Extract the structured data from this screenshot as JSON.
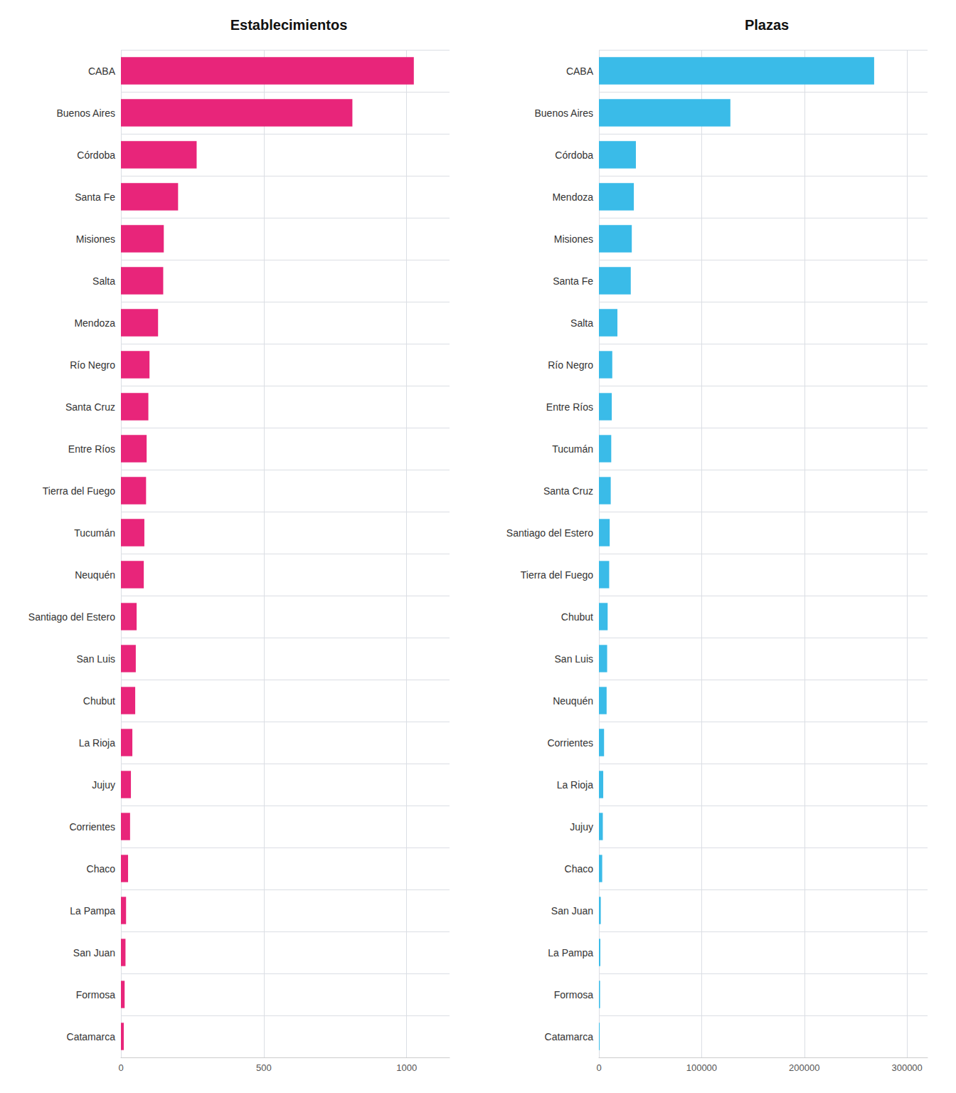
{
  "chart_data": [
    {
      "type": "bar",
      "orientation": "horizontal",
      "title": "Establecimientos",
      "categories": [
        "CABA",
        "Buenos Aires",
        "Córdoba",
        "Santa Fe",
        "Misiones",
        "Salta",
        "Mendoza",
        "Río Negro",
        "Santa Cruz",
        "Entre Ríos",
        "Tierra del Fuego",
        "Tucumán",
        "Neuquén",
        "Santiago del Estero",
        "San Luis",
        "Chubut",
        "La Rioja",
        "Jujuy",
        "Corrientes",
        "Chaco",
        "La Pampa",
        "San Juan",
        "Formosa",
        "Catamarca"
      ],
      "values": [
        1025,
        810,
        265,
        200,
        150,
        148,
        130,
        100,
        96,
        90,
        88,
        82,
        80,
        55,
        52,
        50,
        40,
        35,
        32,
        25,
        18,
        16,
        13,
        10
      ],
      "color": "#E8257A",
      "xlim": [
        0,
        1150
      ],
      "xticks": [
        0,
        500,
        1000
      ],
      "grid": true
    },
    {
      "type": "bar",
      "orientation": "horizontal",
      "title": "Plazas",
      "categories": [
        "CABA",
        "Buenos Aires",
        "Córdoba",
        "Mendoza",
        "Misiones",
        "Santa Fe",
        "Salta",
        "Río Negro",
        "Entre Ríos",
        "Tucumán",
        "Santa Cruz",
        "Santiago del Estero",
        "Tierra del Fuego",
        "Chubut",
        "San Luis",
        "Neuquén",
        "Corrientes",
        "La Rioja",
        "Jujuy",
        "Chaco",
        "San Juan",
        "La Pampa",
        "Formosa",
        "Catamarca"
      ],
      "values": [
        268000,
        128000,
        36000,
        34000,
        32000,
        31000,
        18000,
        13000,
        12500,
        12000,
        11500,
        10500,
        10000,
        8500,
        8000,
        7500,
        5000,
        4200,
        3800,
        3200,
        1800,
        1400,
        1100,
        700
      ],
      "color": "#3ABBE8",
      "xlim": [
        0,
        320000
      ],
      "xticks": [
        0,
        100000,
        200000,
        300000
      ],
      "grid": true
    }
  ]
}
